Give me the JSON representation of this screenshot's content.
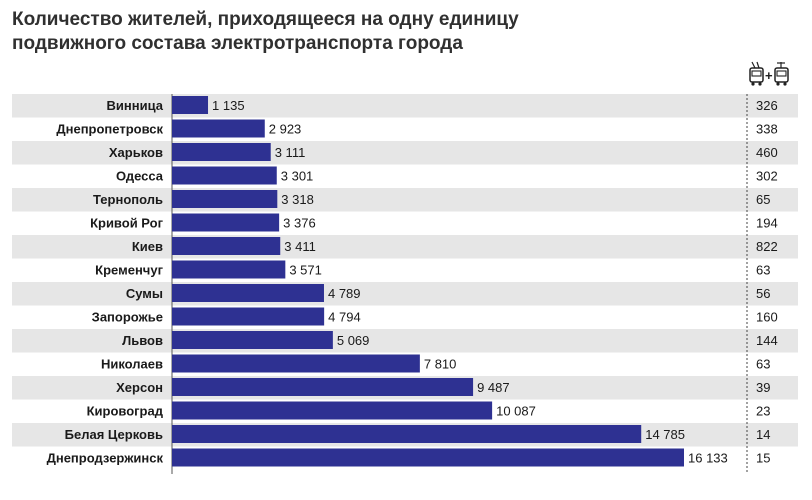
{
  "title_line1": "Количество жителей, приходящееся на одну единицу",
  "title_line2": "подвижного состава электротранспорта города",
  "legend_icon": "trolleybus-plus-tram-icon",
  "colors": {
    "bar": "#2e3192",
    "stripe": "#e6e6e6",
    "text": "#1a1a1a"
  },
  "chart_data": {
    "type": "bar",
    "orientation": "horizontal",
    "title": "Количество жителей, приходящееся на одну единицу подвижного состава электротранспорта города",
    "categories": [
      "Винница",
      "Днепропетровск",
      "Харьков",
      "Одесса",
      "Тернополь",
      "Кривой Рог",
      "Киев",
      "Кременчуг",
      "Сумы",
      "Запорожье",
      "Львов",
      "Николаев",
      "Херсон",
      "Кировоград",
      "Белая Церковь",
      "Днепродзержинск"
    ],
    "values": [
      1135,
      2923,
      3111,
      3301,
      3318,
      3376,
      3411,
      3571,
      4789,
      4794,
      5069,
      7810,
      9487,
      10087,
      14785,
      16133
    ],
    "value_labels": [
      "1 135",
      "2 923",
      "3 111",
      "3 301",
      "3 318",
      "3 376",
      "3 411",
      "3 571",
      "4 789",
      "4 794",
      "5 069",
      "7 810",
      "9 487",
      "10 087",
      "14 785",
      "16 133"
    ],
    "units_count": [
      326,
      338,
      460,
      302,
      65,
      194,
      822,
      63,
      56,
      160,
      144,
      63,
      39,
      23,
      14,
      15
    ],
    "xlim": [
      0,
      16133
    ],
    "grid": false
  }
}
